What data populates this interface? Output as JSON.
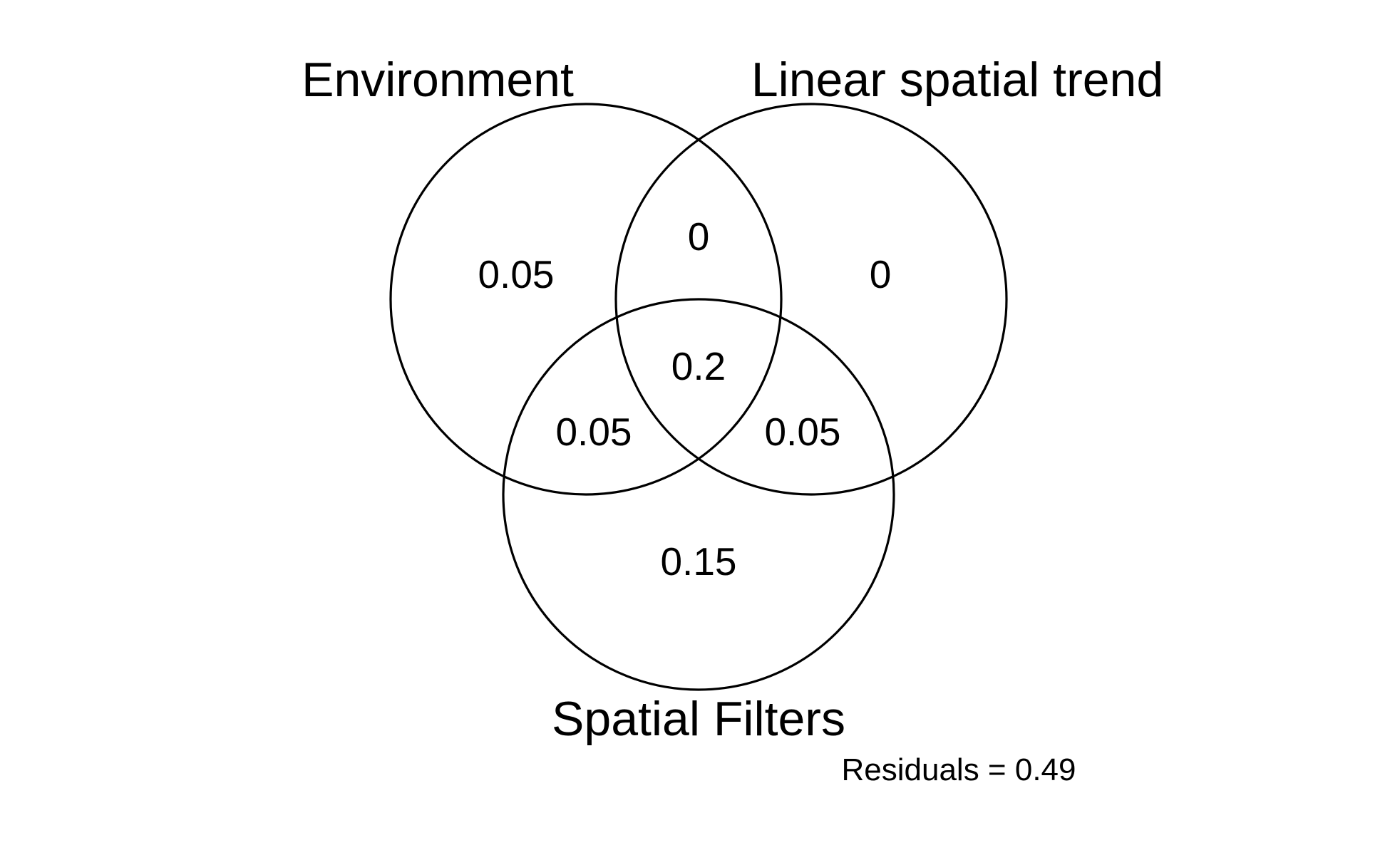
{
  "diagram": {
    "type": "venn",
    "sets": [
      {
        "id": "environment",
        "label": "Environment"
      },
      {
        "id": "linear",
        "label": "Linear spatial trend"
      },
      {
        "id": "spatial",
        "label": "Spatial Filters"
      }
    ],
    "regions": {
      "environment_only": "0.05",
      "linear_only": "0",
      "spatial_only": "0.15",
      "environment_linear": "0",
      "environment_spatial": "0.05",
      "linear_spatial": "0.05",
      "all_three": "0.2"
    },
    "residuals": "Residuals = 0.49"
  }
}
